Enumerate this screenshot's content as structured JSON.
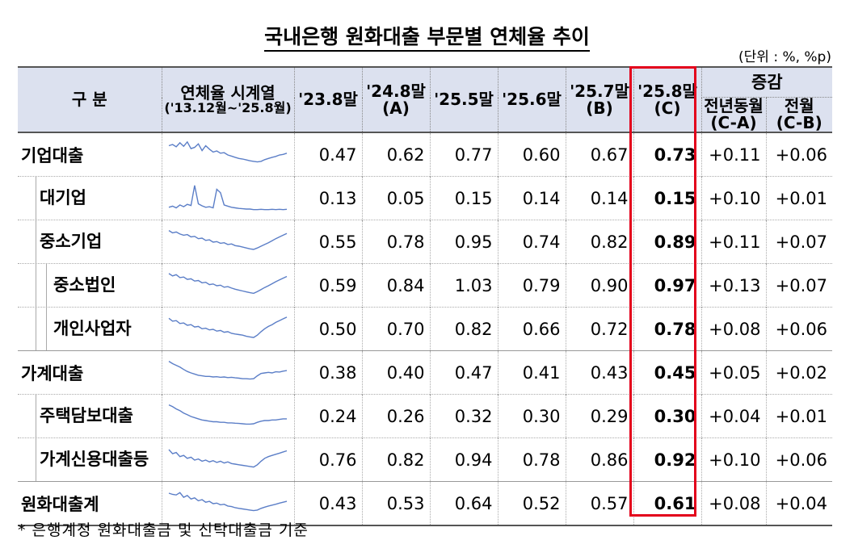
{
  "title": "국내은행 원화대출 부문별 연체율 추이",
  "unit": "(단위 : %, %p)",
  "footnote": "* 은행계정 원화대출금 및 신탁대출금 기준",
  "header": {
    "category": "구 분",
    "spark_title": "연체율 시계열",
    "spark_sub": "('13.12월~'25.8월)",
    "col_2308": "'23.8말",
    "col_2408": "'24.8말",
    "col_2408_tag": "(A)",
    "col_2505": "'25.5말",
    "col_2506": "'25.6말",
    "col_2507": "'25.7말",
    "col_2507_tag": "(B)",
    "col_2508": "'25.8말",
    "col_2508_tag": "(C)",
    "change": "증감",
    "yoy": "전년동월",
    "yoy_tag": "(C-A)",
    "mom": "전월",
    "mom_tag": "(C-B)"
  },
  "highlight_color": "#e3001b",
  "header_bg": "#dce1ef",
  "spark_color": "#5b7ec7",
  "rows": [
    {
      "name": "기업대출",
      "level": 0,
      "v": [
        "0.47",
        "0.62",
        "0.77",
        "0.60",
        "0.67",
        "0.73",
        "+0.11",
        "+0.06"
      ],
      "spark": [
        0.82,
        0.86,
        0.78,
        0.92,
        0.8,
        0.95,
        0.72,
        0.76,
        0.88,
        0.65,
        0.82,
        0.7,
        0.6,
        0.64,
        0.56,
        0.58,
        0.5,
        0.46,
        0.42,
        0.38,
        0.36,
        0.33,
        0.3,
        0.28,
        0.26,
        0.28,
        0.34,
        0.38,
        0.42,
        0.45,
        0.5,
        0.52,
        0.56
      ]
    },
    {
      "name": "대기업",
      "level": 1,
      "v": [
        "0.13",
        "0.05",
        "0.15",
        "0.14",
        "0.14",
        "0.15",
        "+0.10",
        "+0.01"
      ],
      "spark": [
        0.2,
        0.24,
        0.18,
        0.28,
        0.22,
        0.3,
        0.26,
        0.95,
        0.32,
        0.25,
        0.2,
        0.22,
        0.18,
        0.82,
        0.7,
        0.28,
        0.24,
        0.2,
        0.18,
        0.16,
        0.15,
        0.14,
        0.14,
        0.12,
        0.12,
        0.13,
        0.12,
        0.12,
        0.13,
        0.12,
        0.13,
        0.12,
        0.13
      ]
    },
    {
      "name": "중소기업",
      "level": 1,
      "v": [
        "0.55",
        "0.78",
        "0.95",
        "0.74",
        "0.82",
        "0.89",
        "+0.11",
        "+0.07"
      ],
      "spark": [
        0.9,
        0.82,
        0.85,
        0.78,
        0.74,
        0.76,
        0.68,
        0.7,
        0.62,
        0.64,
        0.56,
        0.58,
        0.5,
        0.52,
        0.46,
        0.48,
        0.42,
        0.44,
        0.38,
        0.36,
        0.33,
        0.3,
        0.27,
        0.25,
        0.3,
        0.36,
        0.42,
        0.48,
        0.55,
        0.62,
        0.68,
        0.74,
        0.8
      ]
    },
    {
      "name": "중소법인",
      "level": 2,
      "v": [
        "0.59",
        "0.84",
        "1.03",
        "0.79",
        "0.90",
        "0.97",
        "+0.13",
        "+0.07"
      ],
      "spark": [
        0.92,
        0.84,
        0.88,
        0.78,
        0.8,
        0.72,
        0.74,
        0.66,
        0.68,
        0.6,
        0.62,
        0.54,
        0.56,
        0.5,
        0.52,
        0.45,
        0.47,
        0.42,
        0.38,
        0.35,
        0.32,
        0.29,
        0.26,
        0.24,
        0.3,
        0.37,
        0.44,
        0.5,
        0.57,
        0.64,
        0.7,
        0.76,
        0.82
      ]
    },
    {
      "name": "개인사업자",
      "level": 2,
      "v": [
        "0.50",
        "0.70",
        "0.82",
        "0.66",
        "0.72",
        "0.78",
        "+0.08",
        "+0.06"
      ],
      "spark": [
        0.88,
        0.78,
        0.8,
        0.7,
        0.72,
        0.64,
        0.66,
        0.58,
        0.6,
        0.52,
        0.54,
        0.48,
        0.5,
        0.44,
        0.46,
        0.4,
        0.42,
        0.36,
        0.34,
        0.32,
        0.3,
        0.26,
        0.24,
        0.22,
        0.3,
        0.42,
        0.52,
        0.6,
        0.66,
        0.74,
        0.8,
        0.86,
        0.92
      ]
    },
    {
      "name": "가계대출",
      "level": 0,
      "v": [
        "0.38",
        "0.40",
        "0.47",
        "0.41",
        "0.43",
        "0.45",
        "+0.05",
        "+0.02"
      ],
      "spark": [
        0.9,
        0.82,
        0.76,
        0.7,
        0.62,
        0.55,
        0.5,
        0.46,
        0.42,
        0.4,
        0.38,
        0.38,
        0.36,
        0.37,
        0.35,
        0.36,
        0.34,
        0.35,
        0.33,
        0.32,
        0.3,
        0.3,
        0.29,
        0.3,
        0.4,
        0.48,
        0.5,
        0.52,
        0.5,
        0.54,
        0.53,
        0.56,
        0.58
      ]
    },
    {
      "name": "주택담보대출",
      "level": 1,
      "v": [
        "0.24",
        "0.26",
        "0.32",
        "0.30",
        "0.29",
        "0.30",
        "+0.04",
        "+0.01"
      ],
      "spark": [
        0.9,
        0.84,
        0.76,
        0.7,
        0.62,
        0.56,
        0.5,
        0.46,
        0.42,
        0.38,
        0.36,
        0.34,
        0.32,
        0.32,
        0.3,
        0.3,
        0.28,
        0.28,
        0.27,
        0.26,
        0.25,
        0.24,
        0.24,
        0.25,
        0.3,
        0.34,
        0.36,
        0.36,
        0.38,
        0.38,
        0.4,
        0.42,
        0.42
      ]
    },
    {
      "name": "가계신용대출등",
      "level": 1,
      "v": [
        "0.76",
        "0.82",
        "0.94",
        "0.78",
        "0.86",
        "0.92",
        "+0.10",
        "+0.06"
      ],
      "spark": [
        0.86,
        0.72,
        0.76,
        0.62,
        0.66,
        0.56,
        0.6,
        0.5,
        0.54,
        0.46,
        0.5,
        0.44,
        0.48,
        0.42,
        0.46,
        0.4,
        0.44,
        0.38,
        0.36,
        0.34,
        0.32,
        0.3,
        0.28,
        0.26,
        0.34,
        0.46,
        0.56,
        0.62,
        0.66,
        0.7,
        0.74,
        0.78,
        0.82
      ]
    },
    {
      "name": "원화대출계",
      "level": 0,
      "v": [
        "0.43",
        "0.53",
        "0.64",
        "0.52",
        "0.57",
        "0.61",
        "+0.08",
        "+0.04"
      ],
      "spark": [
        0.86,
        0.82,
        0.8,
        0.88,
        0.72,
        0.78,
        0.66,
        0.7,
        0.6,
        0.64,
        0.55,
        0.58,
        0.5,
        0.52,
        0.46,
        0.48,
        0.42,
        0.4,
        0.36,
        0.34,
        0.32,
        0.3,
        0.28,
        0.26,
        0.28,
        0.34,
        0.38,
        0.42,
        0.45,
        0.48,
        0.52,
        0.55,
        0.58
      ]
    }
  ]
}
